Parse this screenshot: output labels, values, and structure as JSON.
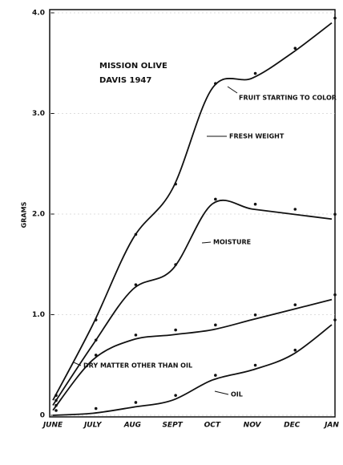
{
  "chart_data": {
    "type": "line",
    "title": "MISSION OLIVE",
    "subtitle": "DAVIS 1947",
    "y_label": "GRAMS",
    "annotations": [
      "FRUIT STARTING TO COLOR"
    ],
    "categories": [
      "JUNE",
      "JULY",
      "AUG",
      "SEPT",
      "OCT",
      "NOV",
      "DEC",
      "JAN"
    ],
    "series": [
      {
        "name": "FRESH WEIGHT",
        "color": "#111111",
        "values": [
          0.15,
          0.9,
          1.75,
          2.25,
          3.25,
          3.35,
          3.6,
          3.9
        ]
      },
      {
        "name": "MOISTURE",
        "color": "#111111",
        "values": [
          0.1,
          0.7,
          1.25,
          1.45,
          2.1,
          2.05,
          2.0,
          1.95
        ]
      },
      {
        "name": "DRY MATTER OTHER THAN OIL",
        "color": "#111111",
        "values": [
          0.05,
          0.55,
          0.75,
          0.8,
          0.85,
          0.95,
          1.05,
          1.15
        ]
      },
      {
        "name": "OIL",
        "color": "#111111",
        "values": [
          0,
          0.02,
          0.08,
          0.15,
          0.35,
          0.45,
          0.6,
          0.9
        ]
      }
    ],
    "ylim": [
      0,
      4
    ],
    "yticks": [
      0,
      {
        "value": 1,
        "label": "1.0"
      },
      {
        "value": 2,
        "label": "2.0"
      },
      {
        "value": 3,
        "label": "3.0"
      },
      {
        "value": 4,
        "label": "4.0"
      }
    ],
    "grid": true
  }
}
